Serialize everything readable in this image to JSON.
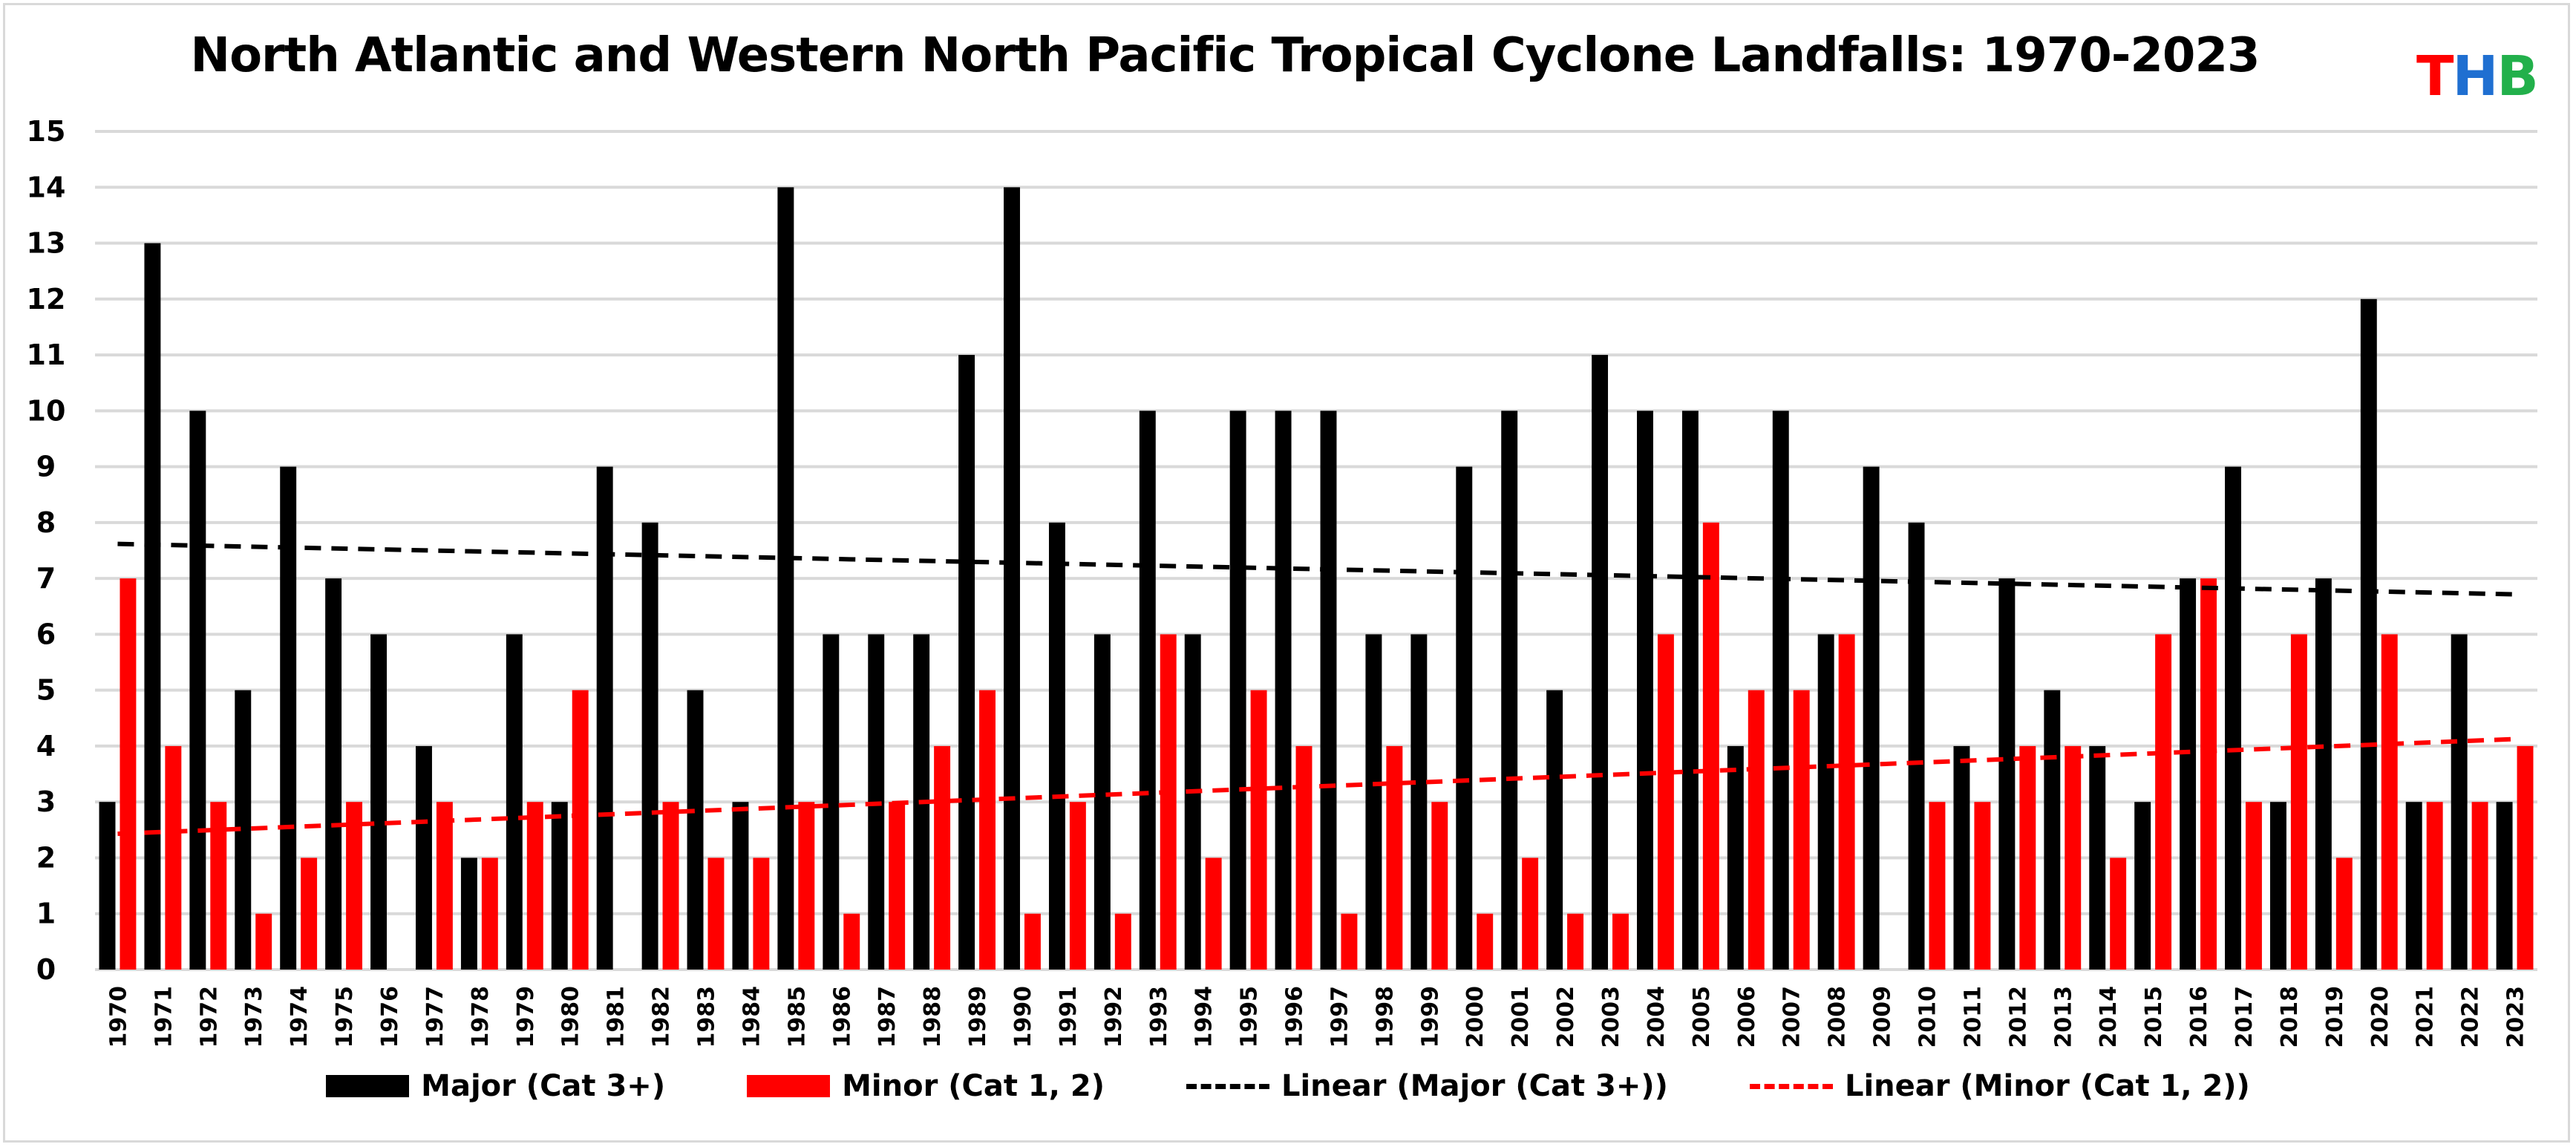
{
  "chart_data": {
    "type": "bar",
    "title": "North Atlantic and Western North Pacific Tropical Cyclone Landfalls: 1970-2023",
    "logo": {
      "text": [
        "T",
        "H",
        "B"
      ],
      "colors": [
        "#ff0000",
        "#1f6fd1",
        "#22b04b"
      ]
    },
    "categories": [
      "1970",
      "1971",
      "1972",
      "1973",
      "1974",
      "1975",
      "1976",
      "1977",
      "1978",
      "1979",
      "1980",
      "1981",
      "1982",
      "1983",
      "1984",
      "1985",
      "1986",
      "1987",
      "1988",
      "1989",
      "1990",
      "1991",
      "1992",
      "1993",
      "1994",
      "1995",
      "1996",
      "1997",
      "1998",
      "1999",
      "2000",
      "2001",
      "2002",
      "2003",
      "2004",
      "2005",
      "2006",
      "2007",
      "2008",
      "2009",
      "2010",
      "2011",
      "2012",
      "2013",
      "2014",
      "2015",
      "2016",
      "2017",
      "2018",
      "2019",
      "2020",
      "2021",
      "2022",
      "2023"
    ],
    "series": [
      {
        "name": "Major (Cat 3+)",
        "color": "#000000",
        "values": [
          3,
          13,
          10,
          5,
          9,
          7,
          6,
          4,
          2,
          6,
          3,
          9,
          8,
          5,
          3,
          14,
          6,
          6,
          6,
          11,
          14,
          8,
          6,
          10,
          6,
          10,
          10,
          10,
          6,
          6,
          9,
          10,
          5,
          11,
          10,
          10,
          4,
          10,
          6,
          9,
          8,
          4,
          7,
          5,
          4,
          3,
          7,
          9,
          3,
          7,
          12,
          3,
          6,
          3
        ]
      },
      {
        "name": "Minor (Cat 1, 2)",
        "color": "#ff0000",
        "values": [
          7,
          4,
          3,
          1,
          2,
          3,
          0,
          3,
          2,
          3,
          5,
          0,
          3,
          2,
          2,
          3,
          1,
          3,
          4,
          5,
          1,
          3,
          1,
          6,
          2,
          5,
          4,
          1,
          4,
          3,
          1,
          2,
          1,
          1,
          6,
          8,
          5,
          5,
          6,
          0,
          3,
          3,
          4,
          4,
          2,
          6,
          7,
          3,
          6,
          2,
          6,
          3,
          3,
          4
        ]
      }
    ],
    "trendlines": [
      {
        "name": "Linear (Major (Cat 3+))",
        "of_series": 0,
        "color": "#000000",
        "style": "dashed"
      },
      {
        "name": "Linear (Minor (Cat 1, 2))",
        "of_series": 1,
        "color": "#ff0000",
        "style": "dashed"
      }
    ],
    "xlabel": "",
    "ylabel": "",
    "ylim": [
      0,
      15
    ],
    "yticks": [
      "0",
      "1",
      "2",
      "3",
      "4",
      "5",
      "6",
      "7",
      "8",
      "9",
      "10",
      "11",
      "12",
      "13",
      "14",
      "15"
    ],
    "grid": true,
    "legend_position": "bottom"
  }
}
